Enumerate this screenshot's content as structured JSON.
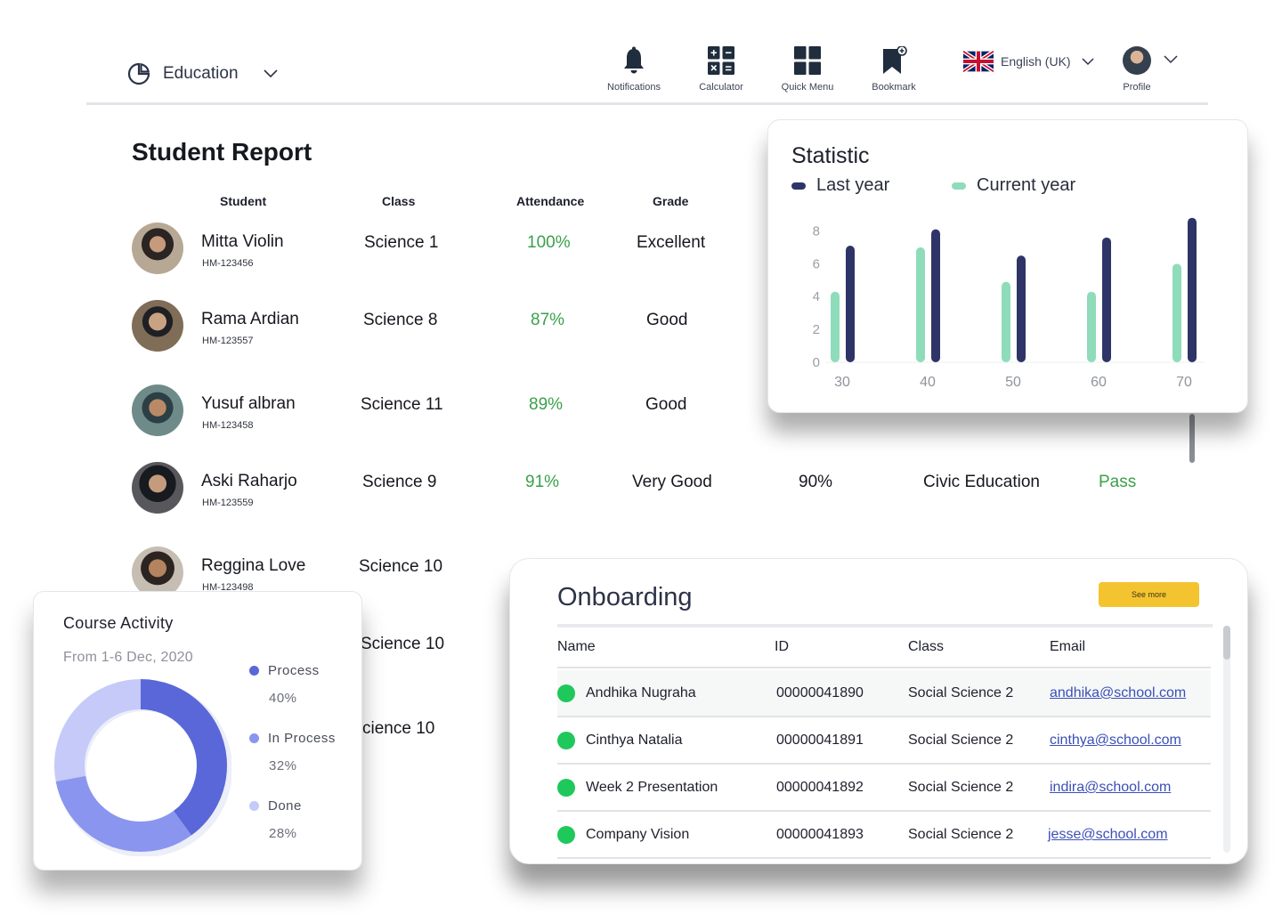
{
  "header": {
    "app_name": "Education",
    "nav": {
      "notifications": "Notifications",
      "calculator": "Calculator",
      "quick_menu": "Quick Menu",
      "bookmark": "Bookmark"
    },
    "language": "English (UK)",
    "profile": "Profile"
  },
  "report": {
    "title": "Student Report",
    "columns": {
      "student": "Student",
      "class": "Class",
      "attendance": "Attendance",
      "grade": "Grade"
    },
    "rows": [
      {
        "name": "Mitta Violin",
        "id": "HM-123456",
        "class": "Science 1",
        "attendance": "100%",
        "grade": "Excellent"
      },
      {
        "name": "Rama Ardian",
        "id": "HM-123557",
        "class": "Science 8",
        "attendance": "87%",
        "grade": "Good"
      },
      {
        "name": "Yusuf albran",
        "id": "HM-123458",
        "class": "Science 11",
        "attendance": "89%",
        "grade": "Good"
      },
      {
        "name": "Aski Raharjo",
        "id": "HM-123559",
        "class": "Science 9",
        "attendance": "91%",
        "grade": "Very Good",
        "score": "90%",
        "subject": "Civic Education",
        "status": "Pass"
      },
      {
        "name": "Reggina Love",
        "id": "HM-123498",
        "class": "Science 10"
      }
    ],
    "hidden_classes": [
      "Science 10",
      "cience 10"
    ]
  },
  "statistic": {
    "title": "Statistic",
    "legend": {
      "last_year": "Last year",
      "current_year": "Current year"
    },
    "colors": {
      "last_year": "#2e3468",
      "current_year": "#8fdcbb"
    }
  },
  "chart_data": {
    "type": "bar",
    "categories": [
      "30",
      "40",
      "50",
      "60",
      "70"
    ],
    "series": [
      {
        "name": "Current year",
        "values": [
          4.3,
          7.0,
          4.9,
          4.3,
          6.0
        ]
      },
      {
        "name": "Last year",
        "values": [
          7.1,
          8.1,
          6.5,
          7.6,
          8.8
        ]
      }
    ],
    "ylim": [
      0,
      9
    ],
    "yticks": [
      "0",
      "2",
      "4",
      "6",
      "8"
    ],
    "legend": "top-left",
    "grid": false
  },
  "course": {
    "title": "Course Activity",
    "subtitle": "From 1-6 Dec, 2020",
    "items": [
      {
        "label": "Process",
        "pct": "40%",
        "value": 40,
        "color": "#5a67d8"
      },
      {
        "label": "In Process",
        "pct": "32%",
        "value": 32,
        "color": "#8a95f0"
      },
      {
        "label": "Done",
        "pct": "28%",
        "value": 28,
        "color": "#c5caf8"
      }
    ]
  },
  "onboarding": {
    "title": "Onboarding",
    "see_more": "See more",
    "columns": {
      "name": "Name",
      "id": "ID",
      "class": "Class",
      "email": "Email"
    },
    "rows": [
      {
        "name": "Andhika Nugraha",
        "id": "00000041890",
        "class": "Social Science 2",
        "email": "andhika@school.com"
      },
      {
        "name": "Cinthya Natalia",
        "id": "00000041891",
        "class": "Social Science 2",
        "email": "cinthya@school.com"
      },
      {
        "name": "Week 2 Presentation",
        "id": "00000041892",
        "class": "Social Science 2",
        "email": "indira@school.com"
      },
      {
        "name": "Company Vision",
        "id": "00000041893",
        "class": "Social Science 2",
        "email": "jesse@school.com"
      }
    ],
    "status_color": "#1fc85a"
  }
}
